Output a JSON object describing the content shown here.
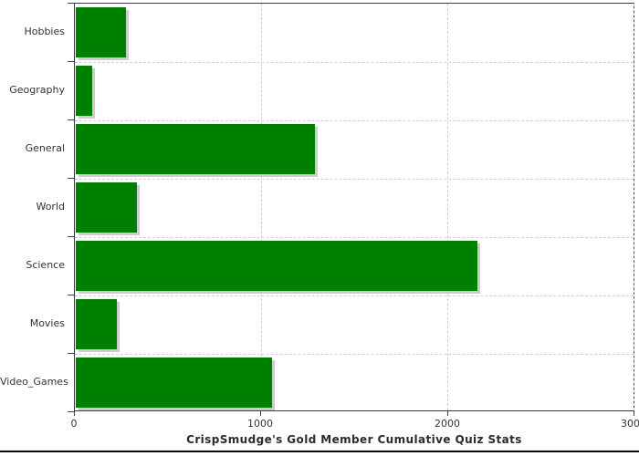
{
  "page": {
    "background": "#ffffff"
  },
  "chart_data": {
    "type": "bar",
    "orientation": "horizontal",
    "title": "CrispSmudge's Gold Member Cumulative Quiz Stats",
    "categories": [
      "Hobbies",
      "Geography",
      "General",
      "World",
      "Science",
      "Movies",
      "Video_Games"
    ],
    "values": [
      270,
      90,
      1285,
      330,
      2155,
      220,
      1055
    ],
    "xlim": [
      0,
      3000
    ],
    "x_ticks": [
      0,
      1000,
      2000,
      3000
    ],
    "x_tick_labels": [
      "0",
      "1000",
      "2000",
      "3000"
    ],
    "grid": "dashed",
    "legend": "none",
    "bar_color": "#008000",
    "bar_shadow_color": "#cccccc",
    "gridline_color": "#cfcfcf",
    "axis_color": "#3c3c3c",
    "label_color": "#333333"
  }
}
